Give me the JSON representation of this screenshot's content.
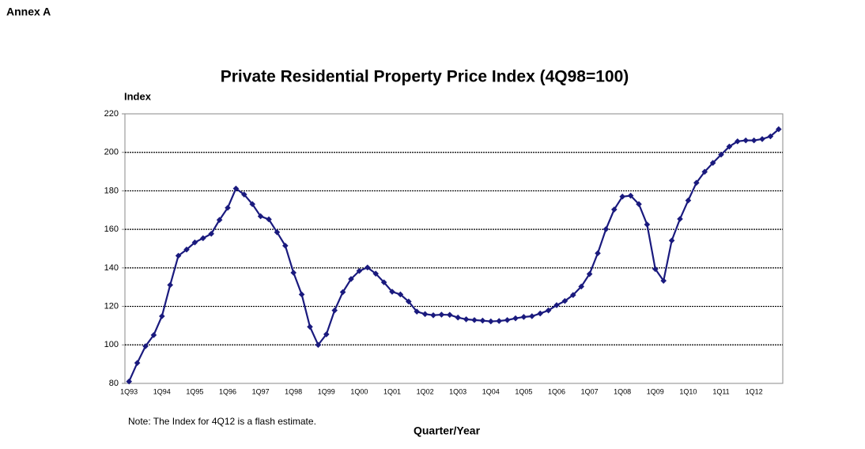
{
  "header": {
    "label": "Annex A"
  },
  "chart_data": {
    "type": "line",
    "title": "Private Residential Property Price Index (4Q98=100)",
    "y_label": "Index",
    "x_label": "Quarter/Year",
    "note": "Note: The Index for 4Q12 is a flash estimate.",
    "categories": [
      "1Q93",
      null,
      null,
      null,
      "1Q94",
      null,
      null,
      null,
      "1Q95",
      null,
      null,
      null,
      "1Q96",
      null,
      null,
      null,
      "1Q97",
      null,
      null,
      null,
      "1Q98",
      null,
      null,
      null,
      "1Q99",
      null,
      null,
      null,
      "1Q00",
      null,
      null,
      null,
      "1Q01",
      null,
      null,
      null,
      "1Q02",
      null,
      null,
      null,
      "1Q03",
      null,
      null,
      null,
      "1Q04",
      null,
      null,
      null,
      "1Q05",
      null,
      null,
      null,
      "1Q06",
      null,
      null,
      null,
      "1Q07",
      null,
      null,
      null,
      "1Q08",
      null,
      null,
      null,
      "1Q09",
      null,
      null,
      null,
      "1Q10",
      null,
      null,
      null,
      "1Q11",
      null,
      null,
      null,
      "1Q12",
      null,
      null,
      null
    ],
    "series": [
      {
        "name": "Private Residential Property Price Index",
        "color": "#1a1a7e",
        "values": [
          81,
          90.6,
          99.3,
          105.1,
          114.9,
          131.1,
          146.3,
          149.5,
          153.2,
          155.4,
          157.7,
          164.9,
          171.2,
          181.2,
          178.1,
          173.1,
          166.8,
          165.2,
          158.5,
          151.5,
          137.5,
          126.2,
          109.4,
          100.0,
          105.5,
          117.9,
          127.4,
          134.2,
          138.4,
          140.2,
          137.0,
          132.5,
          127.6,
          126.2,
          122.5,
          117.3,
          116.0,
          115.4,
          115.7,
          115.6,
          114.2,
          113.3,
          112.9,
          112.6,
          112.2,
          112.4,
          112.9,
          113.8,
          114.5,
          114.9,
          116.3,
          117.9,
          120.6,
          122.8,
          125.9,
          130.3,
          136.8,
          147.6,
          160.1,
          170.3,
          177.0,
          177.5,
          173.1,
          162.5,
          139.4,
          133.3,
          154.2,
          165.4,
          175.0,
          184.2,
          189.9,
          194.5,
          198.8,
          203.0,
          205.7,
          206.2,
          206.2,
          206.9,
          208.3,
          212
        ]
      }
    ],
    "ylim": [
      80,
      220
    ],
    "yticks": [
      80,
      100,
      120,
      140,
      160,
      180,
      200,
      220
    ],
    "grid": true
  }
}
